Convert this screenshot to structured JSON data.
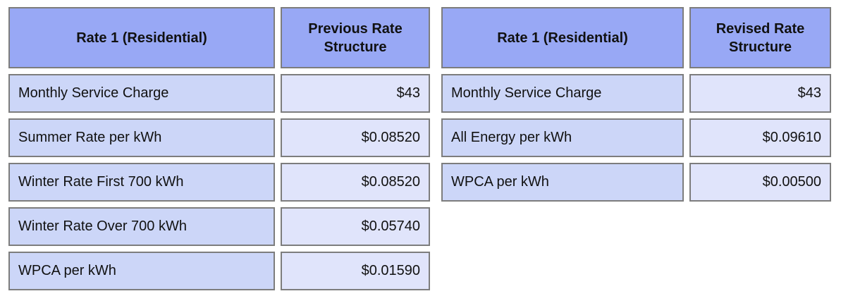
{
  "colors": {
    "header_bg": "#98a8f5",
    "label_bg": "#ccd6f8",
    "value_bg": "#e0e4fb",
    "border": "#7d7d7d",
    "text": "#111111",
    "page_bg": "#ffffff"
  },
  "chart_data": [
    {
      "type": "table",
      "columns": [
        "Rate 1 (Residential)",
        "Previous Rate Structure"
      ],
      "rows": [
        [
          "Monthly Service Charge",
          "$43"
        ],
        [
          "Summer Rate per kWh",
          "$0.08520"
        ],
        [
          "Winter Rate First 700 kWh",
          "$0.08520"
        ],
        [
          "Winter Rate Over 700 kWh",
          "$0.05740"
        ],
        [
          "WPCA per kWh",
          "$0.01590"
        ]
      ]
    },
    {
      "type": "table",
      "columns": [
        "Rate 1 (Residential)",
        "Revised Rate Structure"
      ],
      "rows": [
        [
          "Monthly Service Charge",
          "$43"
        ],
        [
          "All Energy per kWh",
          "$0.09610"
        ],
        [
          "WPCA per kWh",
          "$0.00500"
        ]
      ]
    }
  ]
}
